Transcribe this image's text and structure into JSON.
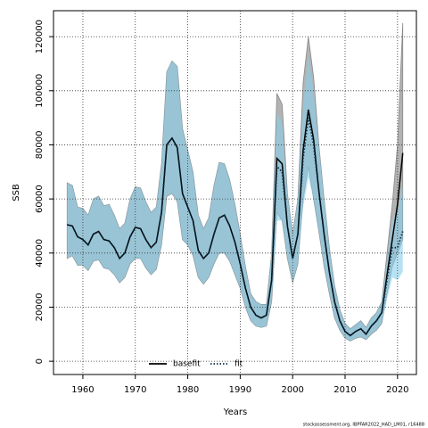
{
  "chart_data": {
    "type": "line",
    "x_label": "Years",
    "y_label": "SSB",
    "footnote": "stockassessment.org, IBPFAR2022_HAD_LM01, r16488",
    "x": [
      1957,
      1958,
      1959,
      1960,
      1961,
      1962,
      1963,
      1964,
      1965,
      1966,
      1967,
      1968,
      1969,
      1970,
      1971,
      1972,
      1973,
      1974,
      1975,
      1976,
      1977,
      1978,
      1979,
      1980,
      1981,
      1982,
      1983,
      1984,
      1985,
      1986,
      1987,
      1988,
      1989,
      1990,
      1991,
      1992,
      1993,
      1994,
      1995,
      1996,
      1997,
      1998,
      1999,
      2000,
      2001,
      2002,
      2003,
      2004,
      2005,
      2006,
      2007,
      2008,
      2009,
      2010,
      2011,
      2012,
      2013,
      2014,
      2015,
      2016,
      2017,
      2018,
      2019,
      2020,
      2021
    ],
    "series": [
      {
        "name": "basefit",
        "color": "#000000",
        "band_color": "#b3b3b3",
        "dash": false,
        "values": [
          50500,
          50000,
          46000,
          45000,
          43000,
          47000,
          48000,
          45000,
          44500,
          42000,
          38000,
          40000,
          46000,
          49500,
          49000,
          45000,
          42000,
          44000,
          55000,
          80000,
          82500,
          79000,
          62000,
          57000,
          52000,
          41000,
          38000,
          40000,
          47000,
          53000,
          54000,
          50000,
          44000,
          36000,
          27000,
          20000,
          17000,
          16000,
          17000,
          30000,
          75000,
          73000,
          50000,
          38000,
          47000,
          78000,
          93000,
          82000,
          63000,
          47000,
          33000,
          22000,
          15000,
          11000,
          9500,
          11000,
          12000,
          10000,
          13000,
          15000,
          18000,
          32000,
          45000,
          58000,
          77000
        ],
        "upper": [
          66000,
          65000,
          57000,
          56500,
          54000,
          60000,
          61000,
          57500,
          58000,
          54000,
          49000,
          51000,
          60000,
          64500,
          64000,
          59000,
          55000,
          57000,
          73000,
          107000,
          111000,
          109000,
          86000,
          78000,
          70000,
          54000,
          49000,
          53000,
          65000,
          73500,
          73000,
          67000,
          58000,
          47000,
          35000,
          25000,
          22000,
          21000,
          21000,
          40000,
          99000,
          95000,
          62000,
          47000,
          60000,
          103000,
          120000,
          105000,
          80000,
          60000,
          42000,
          28000,
          19000,
          14000,
          12000,
          13500,
          15000,
          12500,
          16000,
          18000,
          22000,
          40000,
          58000,
          80000,
          125000
        ],
        "lower": [
          38000,
          39000,
          35500,
          35500,
          33500,
          37000,
          37500,
          34500,
          34000,
          32000,
          29000,
          31000,
          36000,
          38000,
          38000,
          34500,
          32000,
          34000,
          43000,
          61000,
          62000,
          59000,
          45000,
          43000,
          39000,
          31000,
          28500,
          31000,
          36000,
          40000,
          40000,
          37000,
          32000,
          27000,
          20000,
          15000,
          13000,
          12500,
          13000,
          22000,
          55000,
          52000,
          38000,
          29000,
          36000,
          60000,
          72000,
          60000,
          48000,
          35000,
          25000,
          16000,
          11500,
          8500,
          7500,
          8500,
          9000,
          8000,
          10000,
          11500,
          14000,
          25000,
          35000,
          40000,
          45000
        ]
      },
      {
        "name": "fit",
        "color": "#0b2f45",
        "band_color": "#87ceeb",
        "dash": true,
        "values": [
          50500,
          50000,
          46000,
          45000,
          43000,
          47000,
          48000,
          45000,
          44500,
          42000,
          38000,
          40000,
          46000,
          49500,
          49000,
          45000,
          42000,
          44000,
          55000,
          80000,
          82500,
          79000,
          62000,
          57000,
          52000,
          41000,
          38000,
          40000,
          47000,
          53000,
          54000,
          50000,
          44000,
          36000,
          27000,
          20000,
          17000,
          16000,
          17000,
          30000,
          72000,
          70000,
          50000,
          38000,
          47000,
          75000,
          90000,
          80000,
          63000,
          47000,
          33000,
          22000,
          15000,
          11000,
          9500,
          11000,
          12000,
          10000,
          13000,
          15000,
          18000,
          30000,
          42000,
          42000,
          48000
        ],
        "upper": [
          66000,
          65000,
          57000,
          56500,
          54000,
          60000,
          61000,
          57500,
          58000,
          54000,
          49000,
          51000,
          60000,
          64500,
          64000,
          59000,
          55000,
          57000,
          73000,
          107000,
          111000,
          109000,
          86000,
          78000,
          70000,
          54000,
          49000,
          53000,
          65000,
          73500,
          73000,
          67000,
          58000,
          47000,
          35000,
          25000,
          22000,
          21000,
          21000,
          40000,
          92000,
          88000,
          62000,
          47000,
          60000,
          95000,
          113000,
          100000,
          80000,
          60000,
          42000,
          28000,
          19000,
          14000,
          12000,
          13500,
          15000,
          12500,
          16000,
          18000,
          22000,
          37000,
          52000,
          55000,
          65000
        ],
        "lower": [
          38000,
          39000,
          35500,
          35500,
          33500,
          37000,
          37500,
          34500,
          34000,
          32000,
          29000,
          31000,
          36000,
          38000,
          38000,
          34500,
          32000,
          34000,
          43000,
          61000,
          62000,
          59000,
          45000,
          43000,
          39000,
          31000,
          28500,
          31000,
          36000,
          40000,
          40000,
          37000,
          32000,
          27000,
          20000,
          15000,
          13000,
          12500,
          13000,
          22000,
          52000,
          52000,
          38000,
          29000,
          36000,
          57000,
          68000,
          60000,
          48000,
          35000,
          25000,
          16000,
          11500,
          8500,
          7500,
          8500,
          9000,
          8000,
          10000,
          11500,
          14000,
          23000,
          31000,
          30000,
          33000
        ]
      }
    ],
    "xlim": [
      1954.4,
      2023.6
    ],
    "ylim": [
      -4900,
      129600
    ],
    "xticks": [
      1960,
      1970,
      1980,
      1990,
      2000,
      2010,
      2020
    ],
    "yticks": [
      0,
      20000,
      40000,
      60000,
      80000,
      100000,
      120000
    ],
    "grid": true,
    "legend": "bottom"
  }
}
